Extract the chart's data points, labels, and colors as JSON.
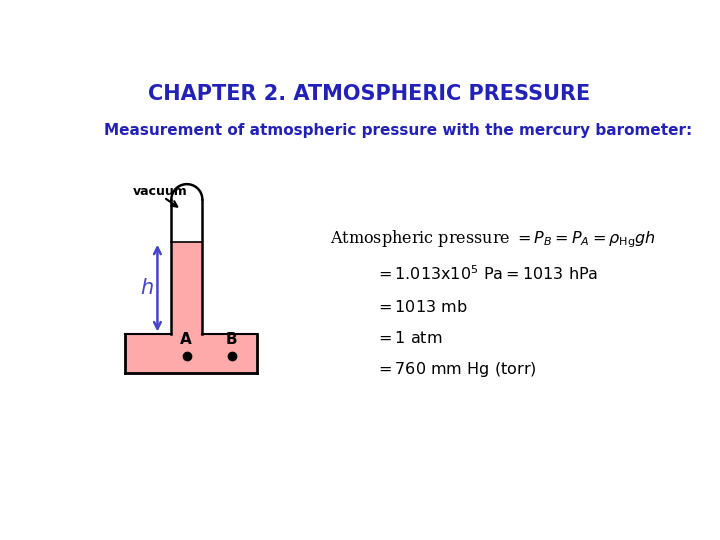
{
  "title": "CHAPTER 2. ATMOSPHERIC PRESSURE",
  "title_color": "#2222bb",
  "subtitle": "Measurement of atmospheric pressure with the mercury barometer:",
  "subtitle_color": "#2222bb",
  "bg_color": "#ffffff",
  "mercury_color": "#ffaaaa",
  "eq1": "Atmospheric pressure = $P_B$ = $P_A$ = $\\rho_{\\rm Hg}gh$",
  "eq2": "= 1.013x10$^5$ Pa = 1013 hPa",
  "eq3": "= 1013 mb",
  "eq4": "= 1 atm",
  "eq5": "= 760 mm Hg (torr)"
}
